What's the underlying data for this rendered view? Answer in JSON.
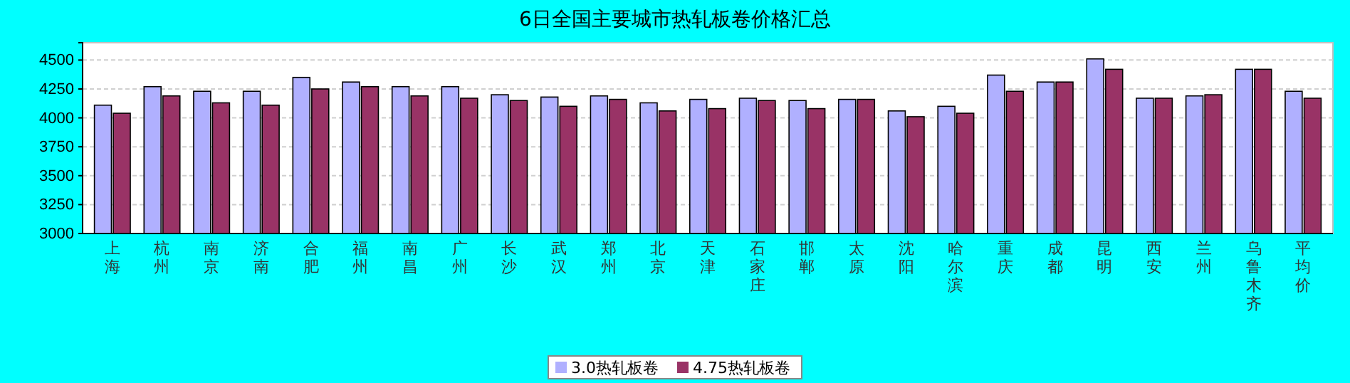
{
  "chart_data": {
    "type": "bar",
    "title": "6日全国主要城市热轧板卷价格汇总",
    "categories": [
      "上海",
      "杭州",
      "南京",
      "济南",
      "合肥",
      "福州",
      "南昌",
      "广州",
      "长沙",
      "武汉",
      "郑州",
      "北京",
      "天津",
      "石家庄",
      "邯郸",
      "太原",
      "沈阳",
      "哈尔滨",
      "重庆",
      "成都",
      "昆明",
      "西安",
      "兰州",
      "乌鲁木齐",
      "平均价"
    ],
    "series": [
      {
        "name": "3.0热轧板卷",
        "color": "#b0b0ff",
        "values": [
          4110,
          4270,
          4230,
          4230,
          4350,
          4310,
          4270,
          4270,
          4200,
          4180,
          4190,
          4130,
          4160,
          4170,
          4150,
          4160,
          4060,
          4100,
          4370,
          4310,
          4510,
          4170,
          4190,
          4420,
          4230
        ]
      },
      {
        "name": "4.75热轧板卷",
        "color": "#993366",
        "values": [
          4040,
          4190,
          4130,
          4110,
          4250,
          4270,
          4190,
          4170,
          4150,
          4100,
          4160,
          4060,
          4080,
          4150,
          4080,
          4160,
          4010,
          4040,
          4230,
          4310,
          4420,
          4170,
          4200,
          4420,
          4170
        ]
      }
    ],
    "ylim": [
      3000,
      4650
    ],
    "yticks": [
      3000,
      3250,
      3500,
      3750,
      4000,
      4250,
      4500
    ],
    "grid": "y",
    "legend": "bottom"
  }
}
